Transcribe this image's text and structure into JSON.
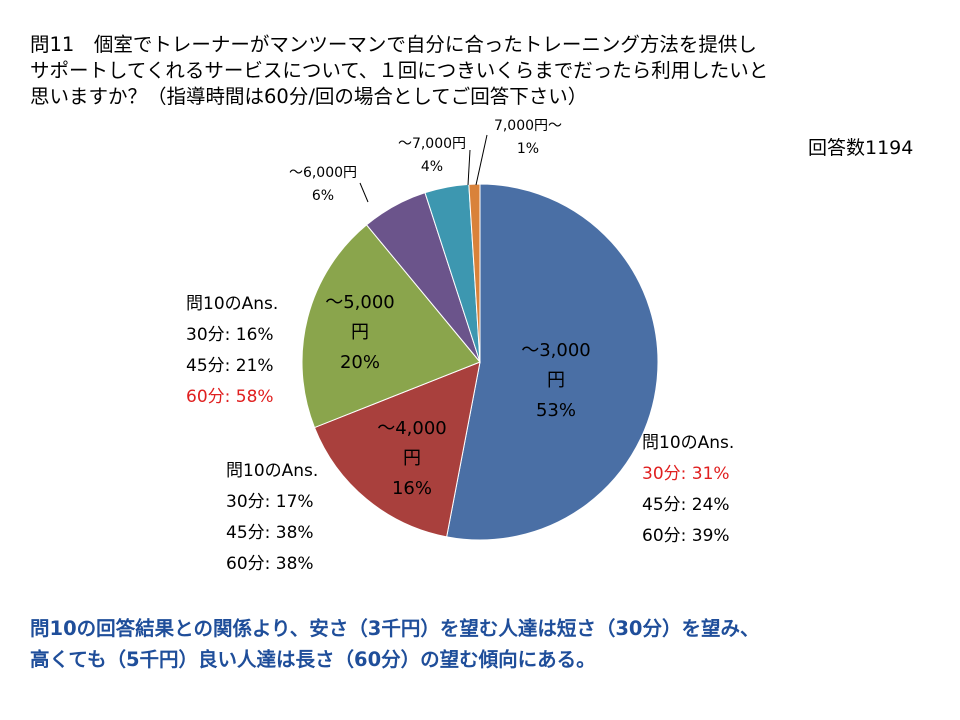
{
  "title_lines": [
    "問11　個室でトレーナーがマンツーマンで自分に合ったトレーニング方法を提供し",
    "サポートしてくれるサービスについて、１回につきいくらまでだったら利用したいと",
    "思いますか？（指導時間は60分/回の場合としてご回答下さい）"
  ],
  "response_count": "回答数1194",
  "chart_data": {
    "type": "pie",
    "slices": [
      {
        "label": "～3,000円",
        "label_lines": [
          "～3,000",
          "円"
        ],
        "value": 53,
        "pct": "53%",
        "color": "#4a6fa5"
      },
      {
        "label": "～4,000円",
        "label_lines": [
          "～4,000",
          "円"
        ],
        "value": 16,
        "pct": "16%",
        "color": "#a9403d"
      },
      {
        "label": "～5,000円",
        "label_lines": [
          "～5,000",
          "円"
        ],
        "value": 20,
        "pct": "20%",
        "color": "#8aa54c"
      },
      {
        "label": "～6,000円",
        "label_lines": [
          "～6,000円"
        ],
        "value": 6,
        "pct": "6%",
        "color": "#6b548b"
      },
      {
        "label": "～7,000円",
        "label_lines": [
          "～7,000円"
        ],
        "value": 4,
        "pct": "4%",
        "color": "#3d97b0"
      },
      {
        "label": "7,000円～",
        "label_lines": [
          "7,000円～"
        ],
        "value": 1,
        "pct": "1%",
        "color": "#d9823a"
      }
    ]
  },
  "annotations": {
    "a3000": {
      "head": "問10のAns.",
      "l30": "30分: 31%",
      "l45": "45分: 24%",
      "l60": "60分: 39%"
    },
    "a4000": {
      "head": "問10のAns.",
      "l30": "30分: 17%",
      "l45": "45分: 38%",
      "l60": "60分: 38%"
    },
    "a5000": {
      "head": "問10のAns.",
      "l30": "30分: 16%",
      "l45": "45分: 21%",
      "l60": "60分: 58%"
    }
  },
  "conclusion_lines": [
    "問10の回答結果との関係より、安さ（3千円）を望む人達は短さ（30分）を望み、",
    "高くても（5千円）良い人達は長さ（60分）の望む傾向にある。"
  ]
}
